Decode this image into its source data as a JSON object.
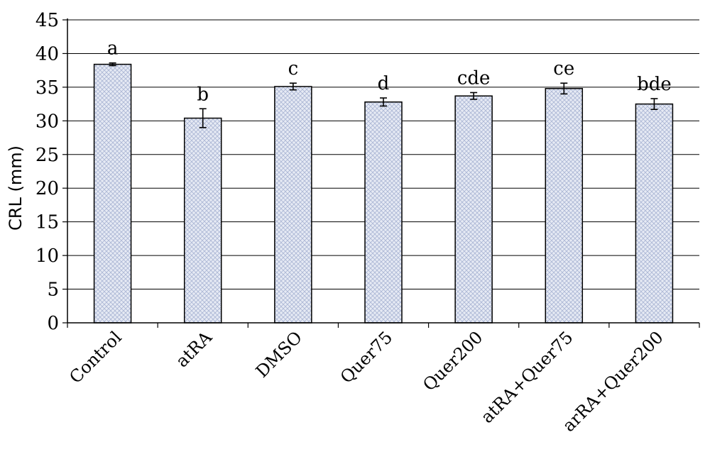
{
  "chart_data": {
    "type": "bar",
    "title": "",
    "xlabel": "",
    "ylabel": "CRL (mm)",
    "ylim": [
      0,
      45
    ],
    "yticks": [
      0,
      5,
      10,
      15,
      20,
      25,
      30,
      35,
      40,
      45
    ],
    "grid": true,
    "legend": "none",
    "categories": [
      "Control",
      "atRA",
      "DMSO",
      "Quer75",
      "Quer200",
      "atRA+Quer75",
      "arRA+Quer200"
    ],
    "values": [
      38.4,
      30.4,
      35.1,
      32.8,
      33.7,
      34.8,
      32.5
    ],
    "errors": [
      0.2,
      1.4,
      0.5,
      0.6,
      0.5,
      0.8,
      0.8
    ],
    "significance_labels": [
      "a",
      "b",
      "c",
      "d",
      "cde",
      "ce",
      "bde"
    ],
    "colors": {
      "bar_fill": "#dde3f0",
      "hatch": "#b8c3dc",
      "bar_stroke": "#000000",
      "grid": "#000000"
    }
  }
}
